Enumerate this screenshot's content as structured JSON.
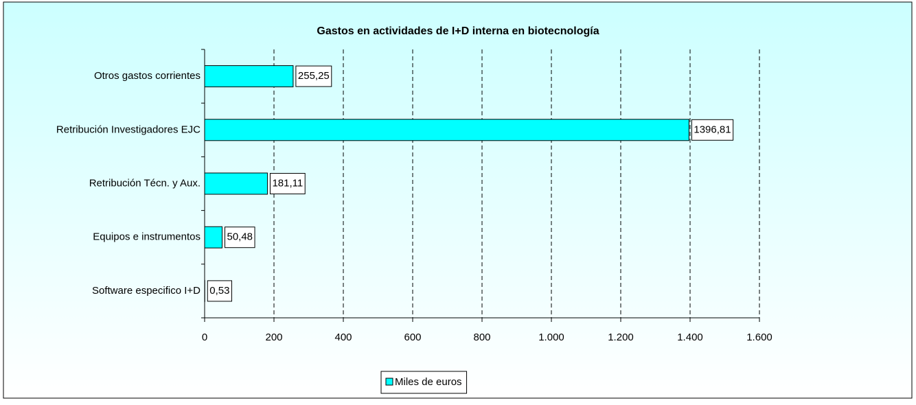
{
  "chart_data": {
    "type": "hbar",
    "title": "Gastos en actividades de I+D interna en biotecnología",
    "categories": [
      "Otros gastos corrientes",
      "Retribución Investigadores EJC",
      "Retribución Técn. y Aux.",
      "Equipos e instrumentos",
      "Software especifico I+D"
    ],
    "series": [
      {
        "name": "Miles de euros",
        "color": "#00ffff",
        "values": [
          255.25,
          1396.81,
          181.11,
          50.48,
          0.53
        ],
        "value_labels": [
          "255,25",
          "1396,81",
          "181,11",
          "50,48",
          "0,53"
        ]
      }
    ],
    "xlim": [
      0,
      1600
    ],
    "xticks": [
      0,
      200,
      400,
      600,
      800,
      {
        "value": 1000,
        "label": "1.000"
      },
      {
        "value": 1200,
        "label": "1.200"
      },
      {
        "value": 1400,
        "label": "1.400"
      },
      {
        "value": 1600,
        "label": "1.600"
      }
    ],
    "grid": true,
    "legend": "bottom"
  }
}
